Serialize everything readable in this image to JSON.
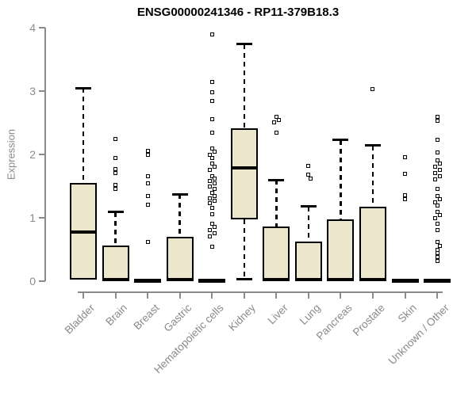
{
  "chart_data": {
    "type": "boxplot",
    "title": "ENSG00000241346 - RP11-379B18.3",
    "ylabel": "Expression",
    "xlabel": "",
    "ylim": [
      0,
      4
    ],
    "yticks": [
      0,
      1,
      2,
      3,
      4
    ],
    "grid": false,
    "legend": null,
    "categories": [
      "Bladder",
      "Brain",
      "Breast",
      "Gastric",
      "Hematopoietic cells",
      "Kidney",
      "Liver",
      "Lung",
      "Pancreas",
      "Prostate",
      "Skin",
      "Unknown / Other"
    ],
    "boxes": [
      {
        "label": "Bladder",
        "q1": 0.02,
        "median": 0.78,
        "q3": 1.55,
        "whisker_low": null,
        "whisker_high": 3.05,
        "outliers": []
      },
      {
        "label": "Brain",
        "q1": 0,
        "median": 0.02,
        "q3": 0.56,
        "whisker_low": null,
        "whisker_high": 1.09,
        "outliers": [
          2.25,
          1.94,
          1.77,
          1.71,
          1.52,
          1.46
        ]
      },
      {
        "label": "Breast",
        "q1": 0,
        "median": 0.01,
        "q3": 0.02,
        "whisker_low": null,
        "whisker_high": null,
        "outliers": [
          2.06,
          2.0,
          1.66,
          1.54,
          1.34,
          1.21,
          0.62
        ]
      },
      {
        "label": "Gastric",
        "q1": 0,
        "median": 0.02,
        "q3": 0.7,
        "whisker_low": null,
        "whisker_high": 1.37,
        "outliers": []
      },
      {
        "label": "Hematopoietic cells",
        "q1": 0,
        "median": 0.01,
        "q3": 0.02,
        "whisker_low": null,
        "whisker_high": null,
        "outliers": [
          3.9,
          3.15,
          2.98,
          2.85,
          2.56,
          2.35,
          2.1,
          2.05,
          2.0,
          1.94,
          1.86,
          1.81,
          1.76,
          1.66,
          1.62,
          1.58,
          1.54,
          1.5,
          1.46,
          1.39,
          1.35,
          1.31,
          1.27,
          1.23,
          1.16,
          1.06,
          0.91,
          0.86,
          0.81,
          0.76,
          0.71,
          0.54
        ]
      },
      {
        "label": "Kidney",
        "q1": 0.98,
        "median": 1.79,
        "q3": 2.41,
        "whisker_low": 0.03,
        "whisker_high": 3.74,
        "outliers": []
      },
      {
        "label": "Liver",
        "q1": 0,
        "median": 0.02,
        "q3": 0.86,
        "whisker_low": null,
        "whisker_high": 1.6,
        "outliers": [
          2.6,
          2.55,
          2.51,
          2.34
        ]
      },
      {
        "label": "Lung",
        "q1": 0,
        "median": 0.02,
        "q3": 0.63,
        "whisker_low": null,
        "whisker_high": 1.18,
        "outliers": [
          1.82,
          1.68,
          1.62
        ]
      },
      {
        "label": "Pancreas",
        "q1": 0,
        "median": 0.02,
        "q3": 0.98,
        "whisker_low": null,
        "whisker_high": 2.23,
        "outliers": []
      },
      {
        "label": "Prostate",
        "q1": 0,
        "median": 0.02,
        "q3": 1.18,
        "whisker_low": null,
        "whisker_high": 2.14,
        "outliers": [
          3.03
        ]
      },
      {
        "label": "Skin",
        "q1": 0,
        "median": 0.01,
        "q3": 0.02,
        "whisker_low": null,
        "whisker_high": null,
        "outliers": [
          1.96,
          1.69,
          1.36,
          1.3
        ]
      },
      {
        "label": "Unknown / Other",
        "q1": 0,
        "median": 0.01,
        "q3": 0.02,
        "whisker_low": null,
        "whisker_high": null,
        "outliers": [
          2.6,
          2.53,
          2.23,
          2.03,
          1.91,
          1.86,
          1.81,
          1.76,
          1.71,
          1.66,
          1.61,
          1.46,
          1.35,
          1.3,
          1.25,
          1.19,
          1.09,
          1.04,
          0.99,
          0.91,
          0.81,
          0.62,
          0.56,
          0.5,
          0.44,
          0.38,
          0.32
        ]
      }
    ],
    "colors": {
      "box_fill": "#ECE7CC",
      "box_border": "#000000",
      "median": "#000000",
      "axis": "#8A8A8A",
      "tick_text": "#8A8A8A",
      "title_text": "#000000",
      "background": "#FFFFFF"
    }
  }
}
